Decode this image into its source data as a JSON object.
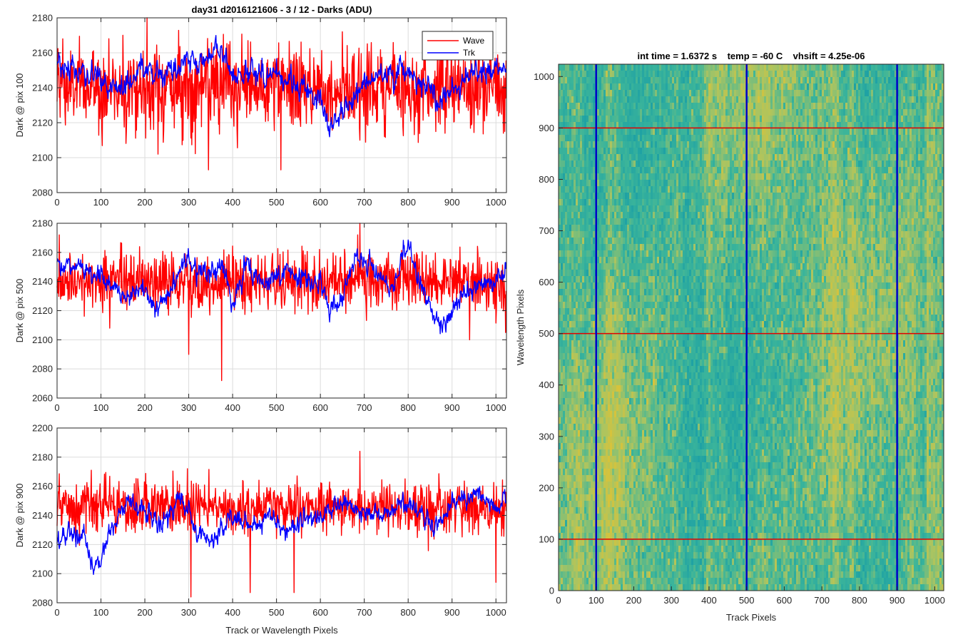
{
  "figure_title": "day31 d2016121606 - 3 / 12 - Darks (ADU)",
  "colors": {
    "wave": "#ff0000",
    "trk": "#0000ff",
    "grid": "#dcdcdc",
    "axes": "#262626"
  },
  "chart_data": [
    {
      "type": "line",
      "title": "day31 d2016121606 - 3 / 12 - Darks (ADU)",
      "xlabel": "",
      "ylabel": "Dark @ pix 100",
      "xlim": [
        0,
        1024
      ],
      "ylim": [
        2080,
        2180
      ],
      "xticks": [
        0,
        100,
        200,
        300,
        400,
        500,
        600,
        700,
        800,
        900,
        1000
      ],
      "yticks": [
        2080,
        2100,
        2120,
        2140,
        2160,
        2180
      ],
      "grid": true,
      "legend": {
        "placement": "top-right",
        "entries": [
          "Wave",
          "Trk"
        ]
      },
      "series": [
        {
          "name": "Wave",
          "color": "#ff0000",
          "mean": 2140,
          "noise": 12,
          "extremes": [
            [
              13,
              2168
            ],
            [
              150,
              2170
            ],
            [
              205,
              2180
            ],
            [
              230,
              2102
            ],
            [
              345,
              2093
            ],
            [
              510,
              2093
            ],
            [
              650,
              2172
            ],
            [
              690,
              2110
            ],
            [
              1020,
              2115
            ]
          ]
        },
        {
          "name": "Trk",
          "color": "#0000ff",
          "mean": 2148,
          "noise": 4,
          "path": [
            [
              0,
              2150
            ],
            [
              50,
              2152
            ],
            [
              100,
              2145
            ],
            [
              150,
              2140
            ],
            [
              200,
              2150
            ],
            [
              250,
              2146
            ],
            [
              300,
              2155
            ],
            [
              340,
              2155
            ],
            [
              360,
              2165
            ],
            [
              400,
              2150
            ],
            [
              450,
              2148
            ],
            [
              500,
              2145
            ],
            [
              550,
              2140
            ],
            [
              600,
              2132
            ],
            [
              620,
              2118
            ],
            [
              660,
              2130
            ],
            [
              700,
              2143
            ],
            [
              750,
              2148
            ],
            [
              800,
              2148
            ],
            [
              850,
              2140
            ],
            [
              870,
              2125
            ],
            [
              900,
              2140
            ],
            [
              950,
              2148
            ],
            [
              1000,
              2150
            ],
            [
              1024,
              2150
            ]
          ]
        }
      ]
    },
    {
      "type": "line",
      "xlabel": "",
      "ylabel": "Dark @ pix 500",
      "xlim": [
        0,
        1024
      ],
      "ylim": [
        2060,
        2180
      ],
      "xticks": [
        0,
        100,
        200,
        300,
        400,
        500,
        600,
        700,
        800,
        900,
        1000
      ],
      "yticks": [
        2060,
        2080,
        2100,
        2120,
        2140,
        2160,
        2180
      ],
      "grid": true,
      "series": [
        {
          "name": "Wave",
          "color": "#ff0000",
          "mean": 2140,
          "noise": 10,
          "extremes": [
            [
              5,
              2172
            ],
            [
              120,
              2108
            ],
            [
              300,
              2090
            ],
            [
              375,
              2072
            ],
            [
              690,
              2180
            ],
            [
              940,
              2100
            ],
            [
              1022,
              2105
            ]
          ]
        },
        {
          "name": "Trk",
          "color": "#0000ff",
          "mean": 2145,
          "noise": 4,
          "path": [
            [
              0,
              2152
            ],
            [
              50,
              2150
            ],
            [
              100,
              2145
            ],
            [
              150,
              2130
            ],
            [
              200,
              2135
            ],
            [
              230,
              2120
            ],
            [
              270,
              2140
            ],
            [
              300,
              2155
            ],
            [
              340,
              2145
            ],
            [
              380,
              2150
            ],
            [
              400,
              2120
            ],
            [
              430,
              2150
            ],
            [
              470,
              2140
            ],
            [
              520,
              2148
            ],
            [
              580,
              2140
            ],
            [
              600,
              2140
            ],
            [
              620,
              2120
            ],
            [
              650,
              2130
            ],
            [
              680,
              2155
            ],
            [
              730,
              2148
            ],
            [
              760,
              2135
            ],
            [
              800,
              2165
            ],
            [
              830,
              2135
            ],
            [
              860,
              2115
            ],
            [
              880,
              2108
            ],
            [
              900,
              2118
            ],
            [
              950,
              2138
            ],
            [
              1000,
              2140
            ],
            [
              1024,
              2148
            ]
          ]
        }
      ]
    },
    {
      "type": "line",
      "xlabel": "Track or Wavelength Pixels",
      "ylabel": "Dark @ pix 900",
      "xlim": [
        0,
        1024
      ],
      "ylim": [
        2080,
        2200
      ],
      "xticks": [
        0,
        100,
        200,
        300,
        400,
        500,
        600,
        700,
        800,
        900,
        1000
      ],
      "yticks": [
        2080,
        2100,
        2120,
        2140,
        2160,
        2180,
        2200
      ],
      "grid": true,
      "series": [
        {
          "name": "Wave",
          "color": "#ff0000",
          "mean": 2145,
          "noise": 9,
          "extremes": [
            [
              305,
              2084
            ],
            [
              440,
              2087
            ],
            [
              540,
              2087
            ],
            [
              690,
              2184
            ],
            [
              1000,
              2094
            ]
          ]
        },
        {
          "name": "Trk",
          "color": "#0000ff",
          "mean": 2140,
          "noise": 4,
          "path": [
            [
              0,
              2120
            ],
            [
              30,
              2130
            ],
            [
              60,
              2128
            ],
            [
              80,
              2105
            ],
            [
              100,
              2110
            ],
            [
              130,
              2138
            ],
            [
              160,
              2150
            ],
            [
              200,
              2143
            ],
            [
              240,
              2135
            ],
            [
              280,
              2150
            ],
            [
              320,
              2128
            ],
            [
              360,
              2125
            ],
            [
              400,
              2142
            ],
            [
              440,
              2130
            ],
            [
              480,
              2138
            ],
            [
              520,
              2130
            ],
            [
              560,
              2135
            ],
            [
              600,
              2140
            ],
            [
              650,
              2150
            ],
            [
              700,
              2140
            ],
            [
              750,
              2140
            ],
            [
              800,
              2150
            ],
            [
              860,
              2132
            ],
            [
              900,
              2148
            ],
            [
              950,
              2155
            ],
            [
              1000,
              2145
            ],
            [
              1024,
              2148
            ]
          ]
        }
      ]
    },
    {
      "type": "heatmap",
      "title": "int time = 1.6372 s    temp = -60 C    vhsift = 4.25e-06",
      "xlabel": "Track Pixels",
      "ylabel": "Wavelength Pixels",
      "xlim": [
        0,
        1024
      ],
      "ylim": [
        0,
        1024
      ],
      "xticks": [
        0,
        100,
        200,
        300,
        400,
        500,
        600,
        700,
        800,
        900,
        1000
      ],
      "yticks": [
        0,
        100,
        200,
        300,
        400,
        500,
        600,
        700,
        800,
        900,
        1000
      ],
      "vertical_lines": [
        100,
        500,
        900
      ],
      "horizontal_lines": [
        100,
        500,
        900
      ],
      "vertical_line_color": "#0000c8",
      "horizontal_line_color": "#e00000",
      "colormap": [
        "#1fa2a4",
        "#3cb59a",
        "#a9c462",
        "#d6c33c"
      ]
    }
  ]
}
